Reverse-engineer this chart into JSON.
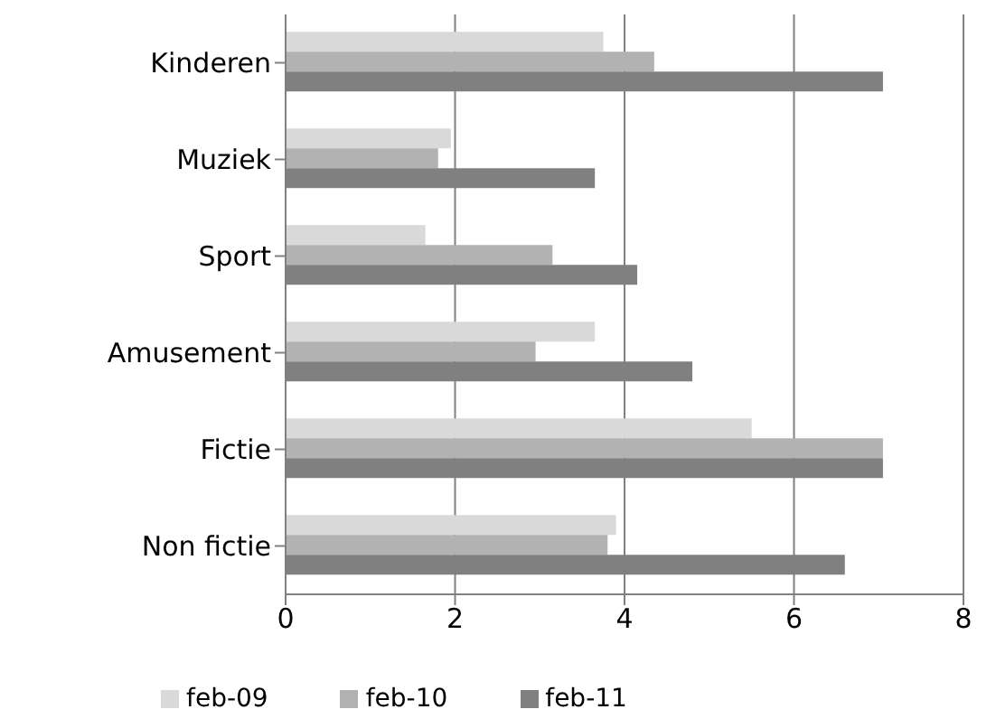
{
  "chart_data": {
    "type": "bar",
    "orientation": "horizontal",
    "categories": [
      "Kinderen",
      "Muziek",
      "Sport",
      "Amusement",
      "Fictie",
      "Non fictie"
    ],
    "series": [
      {
        "name": "feb-09",
        "color": "#d9d9d9",
        "values": [
          3.75,
          1.95,
          1.65,
          3.65,
          5.5,
          3.9
        ]
      },
      {
        "name": "feb-10",
        "color": "#b2b2b2",
        "values": [
          4.35,
          1.8,
          3.15,
          2.95,
          7.05,
          3.8
        ]
      },
      {
        "name": "feb-11",
        "color": "#808080",
        "values": [
          7.05,
          3.65,
          4.15,
          4.8,
          7.05,
          6.6
        ]
      }
    ],
    "xlim": [
      0,
      8
    ],
    "xticks": [
      0,
      2,
      4,
      6,
      8
    ],
    "grid": "x",
    "legend": "bottom"
  }
}
